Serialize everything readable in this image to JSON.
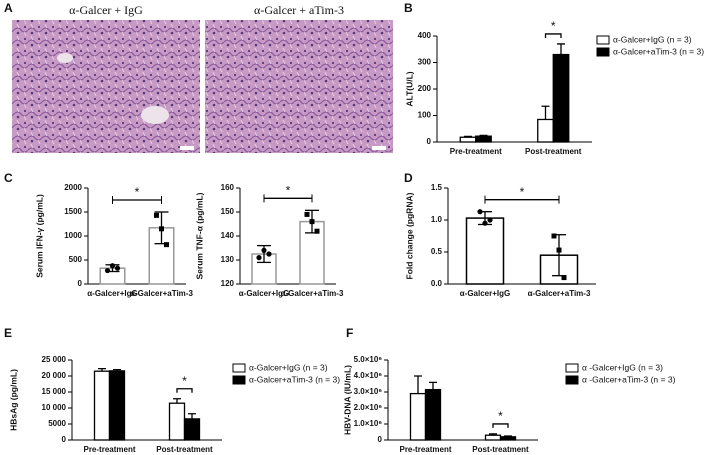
{
  "image_panel": {
    "letter": "A",
    "labels": [
      "α-Galcer + IgG",
      "α-Galcer + aTim-3"
    ]
  },
  "chart_data": [
    {
      "letter": "B",
      "type": "grouped-bar",
      "ylabel": "ALT(U/L)",
      "categories": [
        "Pre-treatment",
        "Post-treatment"
      ],
      "series": [
        {
          "name": "α-Galcer+IgG (n = 3)",
          "color": "#ffffff",
          "values": [
            18,
            85
          ],
          "errors": [
            3,
            50
          ]
        },
        {
          "name": "α-Galcer+aTim-3 (n = 3)",
          "color": "#000000",
          "values": [
            22,
            330
          ],
          "errors": [
            3,
            40
          ]
        }
      ],
      "ylim": [
        0,
        400
      ],
      "yticks": [
        0,
        100,
        200,
        300,
        400
      ],
      "annotation": "*"
    },
    {
      "letter": "C",
      "type": "bar",
      "ylabel": "Serum IFN-γ (pg/mL)",
      "categories": [
        "α-Galcer+IgG",
        "α-Galcer+aTim-3"
      ],
      "series": [
        {
          "color": "#ffffff",
          "edge_color": "#999999",
          "values": [
            330,
            1170
          ],
          "errors": [
            70,
            330
          ],
          "points": [
            [
              280,
              380,
              330
            ],
            [
              1430,
              1150,
              820
            ]
          ]
        }
      ],
      "ylim": [
        0,
        2000
      ],
      "yticks": [
        0,
        500,
        1000,
        1500,
        2000
      ],
      "annotation": "*"
    },
    {
      "type": "bar",
      "ylabel": "Serum TNF-α (pg/mL)",
      "categories": [
        "α-Galcer+IgG",
        "α-Galcer+aTim-3"
      ],
      "series": [
        {
          "color": "#ffffff",
          "edge_color": "#999999",
          "values": [
            132.5,
            146
          ],
          "errors": [
            3.5,
            4.7
          ],
          "points": [
            [
              131,
              134,
              132.5
            ],
            [
              149,
              146,
              142
            ]
          ]
        }
      ],
      "ylim": [
        120,
        160
      ],
      "yticks": [
        120,
        130,
        140,
        150,
        160
      ],
      "annotation": "*"
    },
    {
      "letter": "D",
      "type": "bar",
      "ylabel": "Fold change (pgRNA)",
      "categories": [
        "α-Galcer+IgG",
        "α-Galcer+aTim-3"
      ],
      "series": [
        {
          "color": "#ffffff",
          "edge_color": "#000000",
          "values": [
            1.03,
            0.45
          ],
          "errors": [
            0.1,
            0.32
          ],
          "points": [
            [
              1.13,
              0.95,
              1.0
            ],
            [
              0.75,
              0.53,
              0.1
            ]
          ]
        }
      ],
      "ylim": [
        0,
        1.5
      ],
      "yticks": [
        {
          "value": 0,
          "label": "0.0"
        },
        0.5,
        {
          "value": 1,
          "label": "1.0"
        },
        1.5
      ],
      "annotation": "*"
    },
    {
      "letter": "E",
      "type": "grouped-bar",
      "ylabel": "HBsAg (pg/mL)",
      "categories": [
        "Pre-treatment",
        "Post-treatment"
      ],
      "series": [
        {
          "name": "α-Galcer+IgG (n = 3)",
          "color": "#ffffff",
          "values": [
            21500,
            11500
          ],
          "errors": [
            800,
            1400
          ]
        },
        {
          "name": "α-Galcer+aTim-3 (n = 3)",
          "color": "#000000",
          "values": [
            21600,
            6600
          ],
          "errors": [
            400,
            1600
          ]
        }
      ],
      "ylim": [
        0,
        25000
      ],
      "yticks": [
        0,
        5000,
        {
          "value": 10000,
          "label": "10 000"
        },
        {
          "value": 15000,
          "label": "15 000"
        },
        {
          "value": 20000,
          "label": "20 000"
        },
        {
          "value": 25000,
          "label": "25 000"
        }
      ],
      "annotation": "*"
    },
    {
      "letter": "F",
      "type": "grouped-bar",
      "ylabel": "HBV-DNA (IU/mL)",
      "categories": [
        "Pre-treatment",
        "Post-treatment"
      ],
      "series": [
        {
          "name": "α -Galcer+IgG (n = 3)",
          "color": "#ffffff",
          "values": [
            2900000,
            300000
          ],
          "errors": [
            1100000,
            80000
          ]
        },
        {
          "name": "α -Galcer+aTim-3 (n = 3)",
          "color": "#000000",
          "values": [
            3150000,
            200000
          ],
          "errors": [
            450000,
            50000
          ]
        }
      ],
      "ylim": [
        0,
        5000000
      ],
      "yticks": [
        0,
        {
          "value": 1000000,
          "label": "1.0×10⁶"
        },
        {
          "value": 2000000,
          "label": "2.0×10⁶"
        },
        {
          "value": 3000000,
          "label": "3.0×10⁶"
        },
        {
          "value": 4000000,
          "label": "4.0×10⁶"
        },
        {
          "value": 5000000,
          "label": "5.0×10⁶"
        }
      ],
      "annotation": "*"
    }
  ]
}
